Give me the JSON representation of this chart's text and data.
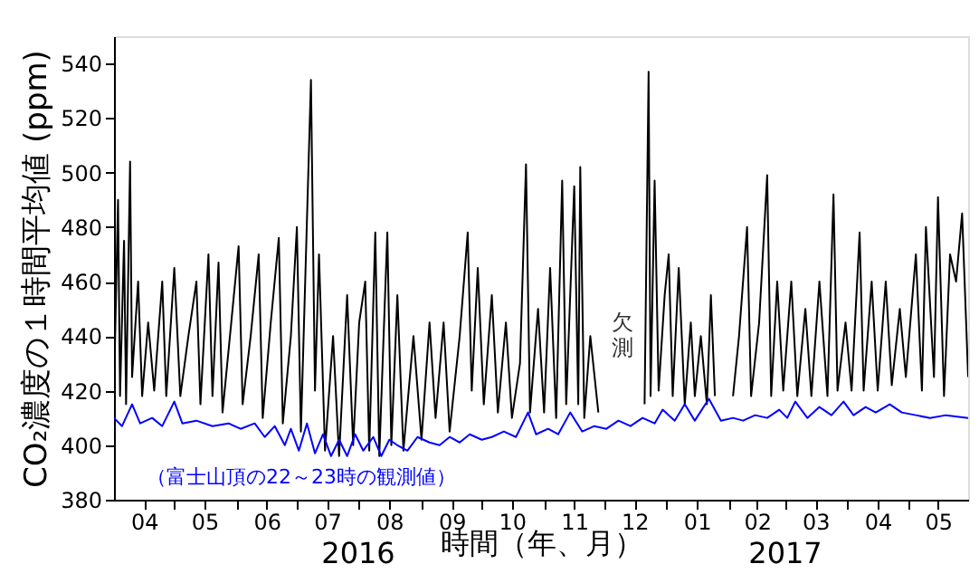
{
  "chart_data": {
    "type": "line",
    "xlabel": "時間（年、月）",
    "ylabel": "CO₂濃度の１時間平均値 (ppm)",
    "xlim": [
      "2016-04-01",
      "2017-05-31"
    ],
    "xticks": [
      {
        "value": "2016-04-16",
        "label": "04"
      },
      {
        "value": "2016-05-01",
        "label": null
      },
      {
        "value": "2016-05-16",
        "label": "05"
      },
      {
        "value": "2016-06-01",
        "label": null
      },
      {
        "value": "2016-06-16",
        "label": "06"
      },
      {
        "value": "2016-07-01",
        "label": null
      },
      {
        "value": "2016-07-16",
        "label": "07"
      },
      {
        "value": "2016-08-01",
        "label": null
      },
      {
        "value": "2016-08-16",
        "label": "08"
      },
      {
        "value": "2016-09-01",
        "label": null
      },
      {
        "value": "2016-09-16",
        "label": "09"
      },
      {
        "value": "2016-10-01",
        "label": null
      },
      {
        "value": "2016-10-16",
        "label": "10"
      },
      {
        "value": "2016-11-01",
        "label": null
      },
      {
        "value": "2016-11-16",
        "label": "11"
      },
      {
        "value": "2016-12-01",
        "label": null
      },
      {
        "value": "2016-12-16",
        "label": "12"
      },
      {
        "value": "2017-01-01",
        "label": null
      },
      {
        "value": "2017-01-16",
        "label": "01"
      },
      {
        "value": "2017-02-01",
        "label": null
      },
      {
        "value": "2017-02-15",
        "label": "02"
      },
      {
        "value": "2017-03-01",
        "label": null
      },
      {
        "value": "2017-03-16",
        "label": "03"
      },
      {
        "value": "2017-04-01",
        "label": null
      },
      {
        "value": "2017-04-16",
        "label": "04"
      },
      {
        "value": "2017-05-01",
        "label": null
      },
      {
        "value": "2017-05-16",
        "label": "05"
      }
    ],
    "ylim": [
      380,
      550
    ],
    "yticks": [
      380,
      400,
      420,
      440,
      460,
      480,
      500,
      520,
      540
    ],
    "grid": false,
    "series": [
      {
        "color": "#000000",
        "x": [
          "2016-04-01",
          "2016-04-03",
          "2016-04-04",
          "2016-04-06",
          "2016-04-07",
          "2016-04-09",
          "2016-04-10",
          "2016-04-13",
          "2016-04-15",
          "2016-04-18",
          "2016-04-21",
          "2016-04-25",
          "2016-04-27",
          "2016-05-01",
          "2016-05-04",
          "2016-05-08",
          "2016-05-12",
          "2016-05-14",
          "2016-05-18",
          "2016-05-20",
          "2016-05-23",
          "2016-05-25",
          "2016-05-30",
          "2016-06-02",
          "2016-06-04",
          "2016-06-08",
          "2016-06-12",
          "2016-06-14",
          "2016-06-18",
          "2016-06-22",
          "2016-06-24",
          "2016-06-28",
          "2016-07-01",
          "2016-07-03",
          "2016-07-08",
          "2016-07-10",
          "2016-07-12",
          "2016-07-15",
          "2016-07-19",
          "2016-07-22",
          "2016-07-26",
          "2016-07-29",
          "2016-08-01",
          "2016-08-04",
          "2016-08-06",
          "2016-08-09",
          "2016-08-11",
          "2016-08-15",
          "2016-08-17",
          "2016-08-20",
          "2016-08-23",
          "2016-08-28",
          "2016-09-01",
          "2016-09-05",
          "2016-09-08",
          "2016-09-12",
          "2016-09-15",
          "2016-09-20",
          "2016-09-24",
          "2016-09-26",
          "2016-09-29",
          "2016-10-02",
          "2016-10-06",
          "2016-10-09",
          "2016-10-13",
          "2016-10-16",
          "2016-10-20",
          "2016-10-23",
          "2016-10-25",
          "2016-10-29",
          "2016-11-01",
          "2016-11-04",
          "2016-11-07",
          "2016-11-10",
          "2016-11-12",
          "2016-11-16",
          "2016-11-18",
          "2016-11-19",
          "2016-11-21",
          "2016-11-24",
          "2016-11-28",
          "2016-12-10",
          "2016-12-21",
          "2016-12-23",
          "2016-12-24",
          "2016-12-26",
          "2016-12-28",
          "2016-12-31",
          "2017-01-02",
          "2017-01-04",
          "2017-01-07",
          "2017-01-10",
          "2017-01-13",
          "2017-01-15",
          "2017-01-18",
          "2017-01-21",
          "2017-01-23",
          "2017-01-25",
          "2017-01-29",
          "2017-02-03",
          "2017-02-06",
          "2017-02-10",
          "2017-02-12",
          "2017-02-16",
          "2017-02-20",
          "2017-02-22",
          "2017-02-25",
          "2017-02-28",
          "2017-03-04",
          "2017-03-07",
          "2017-03-11",
          "2017-03-14",
          "2017-03-18",
          "2017-03-22",
          "2017-03-25",
          "2017-03-27",
          "2017-03-31",
          "2017-04-03",
          "2017-04-07",
          "2017-04-09",
          "2017-04-13",
          "2017-04-16",
          "2017-04-20",
          "2017-04-23",
          "2017-04-27",
          "2017-04-30",
          "2017-05-05",
          "2017-05-08",
          "2017-05-10",
          "2017-05-14",
          "2017-05-16",
          "2017-05-19",
          "2017-05-22",
          "2017-05-25",
          "2017-05-28",
          "2017-05-31"
        ],
        "values": [
          420,
          490,
          418,
          475,
          415,
          504,
          425,
          460,
          418,
          445,
          420,
          460,
          418,
          465,
          418,
          440,
          460,
          415,
          470,
          418,
          467,
          412,
          450,
          473,
          415,
          440,
          470,
          410,
          445,
          476,
          408,
          440,
          480,
          405,
          534,
          420,
          470,
          398,
          440,
          396,
          455,
          400,
          445,
          460,
          398,
          478,
          396,
          478,
          400,
          455,
          398,
          440,
          402,
          445,
          410,
          445,
          405,
          440,
          478,
          420,
          465,
          415,
          455,
          412,
          445,
          410,
          430,
          503,
          412,
          450,
          412,
          465,
          410,
          497,
          415,
          495,
          415,
          502,
          410,
          440,
          412,
          null,
          415,
          537,
          418,
          497,
          420,
          455,
          470,
          418,
          465,
          415,
          445,
          418,
          440,
          415,
          455,
          418,
          null,
          418,
          440,
          480,
          418,
          445,
          499,
          418,
          460,
          420,
          460,
          418,
          450,
          418,
          460,
          418,
          492,
          420,
          445,
          420,
          478,
          420,
          460,
          420,
          460,
          422,
          450,
          425,
          470,
          420,
          480,
          425,
          491,
          418,
          470,
          460,
          485,
          425
        ]
      },
      {
        "name": "（富士山頂の22～23時の観測値）",
        "color": "#0000ff",
        "x": [
          "2016-04-01",
          "2016-04-05",
          "2016-04-10",
          "2016-04-14",
          "2016-04-20",
          "2016-04-25",
          "2016-05-01",
          "2016-05-05",
          "2016-05-12",
          "2016-05-20",
          "2016-05-28",
          "2016-06-03",
          "2016-06-10",
          "2016-06-15",
          "2016-06-20",
          "2016-06-25",
          "2016-06-28",
          "2016-07-02",
          "2016-07-06",
          "2016-07-10",
          "2016-07-14",
          "2016-07-18",
          "2016-07-22",
          "2016-07-26",
          "2016-07-30",
          "2016-08-03",
          "2016-08-08",
          "2016-08-12",
          "2016-08-16",
          "2016-08-20",
          "2016-08-25",
          "2016-08-30",
          "2016-09-05",
          "2016-09-10",
          "2016-09-15",
          "2016-09-20",
          "2016-09-25",
          "2016-10-01",
          "2016-10-06",
          "2016-10-12",
          "2016-10-18",
          "2016-10-24",
          "2016-10-28",
          "2016-11-03",
          "2016-11-08",
          "2016-11-14",
          "2016-11-20",
          "2016-11-26",
          "2016-12-02",
          "2016-12-08",
          "2016-12-14",
          "2016-12-20",
          "2016-12-26",
          "2016-12-30",
          "2017-01-05",
          "2017-01-10",
          "2017-01-15",
          "2017-01-22",
          "2017-01-28",
          "2017-02-03",
          "2017-02-08",
          "2017-02-14",
          "2017-02-20",
          "2017-02-26",
          "2017-03-02",
          "2017-03-06",
          "2017-03-12",
          "2017-03-18",
          "2017-03-24",
          "2017-03-30",
          "2017-04-04",
          "2017-04-10",
          "2017-04-15",
          "2017-04-22",
          "2017-04-28",
          "2017-05-05",
          "2017-05-12",
          "2017-05-20",
          "2017-05-31"
        ],
        "values": [
          410,
          407,
          415,
          408,
          410,
          407,
          416,
          408,
          409,
          407,
          408,
          406,
          408,
          403,
          407,
          400,
          406,
          398,
          408,
          397,
          404,
          396,
          402,
          396,
          404,
          398,
          403,
          396,
          402,
          400,
          398,
          403,
          401,
          400,
          403,
          401,
          404,
          402,
          403,
          405,
          403,
          412,
          404,
          406,
          404,
          412,
          405,
          407,
          406,
          409,
          407,
          410,
          408,
          413,
          409,
          415,
          409,
          417,
          409,
          410,
          409,
          411,
          410,
          413,
          410,
          416,
          410,
          414,
          411,
          416,
          411,
          414,
          412,
          415,
          412,
          411,
          410,
          411,
          410
        ]
      }
    ],
    "annotations": [
      "欠測",
      "2016",
      "2017"
    ]
  }
}
